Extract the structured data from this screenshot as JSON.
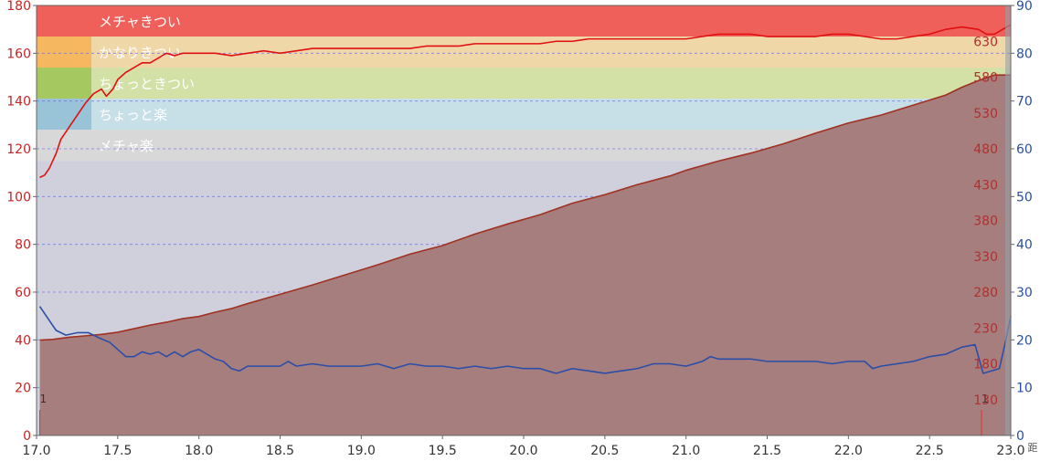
{
  "chart_data": {
    "type": "line",
    "xlim": [
      17.0,
      23.0
    ],
    "x_ticks": [
      "17.0",
      "17.5",
      "18.0",
      "18.5",
      "19.0",
      "19.5",
      "20.0",
      "20.5",
      "21.0",
      "21.5",
      "22.0",
      "22.5",
      "23.0"
    ],
    "left_axis": {
      "ylim": [
        0,
        180
      ],
      "ticks": [
        "0",
        "20",
        "40",
        "60",
        "80",
        "100",
        "120",
        "140",
        "160",
        "180"
      ]
    },
    "right_axis_red": {
      "ylim": [
        80,
        680
      ],
      "ticks": [
        "130",
        "180",
        "230",
        "280",
        "330",
        "380",
        "430",
        "480",
        "530",
        "580",
        "630"
      ]
    },
    "right_axis_blue": {
      "ylim": [
        0,
        90
      ],
      "ticks": [
        "0",
        "10",
        "20",
        "30",
        "40",
        "50",
        "60",
        "70",
        "80",
        "90"
      ]
    },
    "right_axis_unit": "距",
    "zones": [
      {
        "label": "メチャきつい",
        "from": 167,
        "to": 180,
        "color": "#f0605a",
        "band_color": "#f0605a"
      },
      {
        "label": "かなりきつい",
        "from": 154,
        "to": 167,
        "color": "#f5b860",
        "band_color": "#efd7a8"
      },
      {
        "label": "ちょっときつい",
        "from": 141,
        "to": 154,
        "color": "#a5c860",
        "band_color": "#d3e0a6"
      },
      {
        "label": "ちょっと楽",
        "from": 128,
        "to": 141,
        "color": "#99c3d7",
        "band_color": "#c7e0e8"
      },
      {
        "label": "メチャ楽",
        "from": 115,
        "to": 128,
        "color": "#d8d8d8",
        "band_color": "#d8d8d8"
      }
    ],
    "below_zone_color": "#cfd0dc",
    "series": [
      {
        "axis": "left",
        "color": "#e01010",
        "points": [
          [
            17.02,
            108
          ],
          [
            17.05,
            109
          ],
          [
            17.08,
            112
          ],
          [
            17.12,
            118
          ],
          [
            17.15,
            124
          ],
          [
            17.2,
            129
          ],
          [
            17.25,
            134
          ],
          [
            17.3,
            139
          ],
          [
            17.35,
            143
          ],
          [
            17.4,
            145
          ],
          [
            17.43,
            142
          ],
          [
            17.47,
            145
          ],
          [
            17.5,
            149
          ],
          [
            17.55,
            152
          ],
          [
            17.6,
            154
          ],
          [
            17.65,
            156
          ],
          [
            17.7,
            156
          ],
          [
            17.75,
            158
          ],
          [
            17.8,
            160
          ],
          [
            17.85,
            159
          ],
          [
            17.9,
            160
          ],
          [
            18.0,
            160
          ],
          [
            18.1,
            160
          ],
          [
            18.2,
            159
          ],
          [
            18.3,
            160
          ],
          [
            18.4,
            161
          ],
          [
            18.5,
            160
          ],
          [
            18.6,
            161
          ],
          [
            18.7,
            162
          ],
          [
            18.8,
            162
          ],
          [
            18.9,
            162
          ],
          [
            19.0,
            162
          ],
          [
            19.1,
            162
          ],
          [
            19.2,
            162
          ],
          [
            19.3,
            162
          ],
          [
            19.4,
            163
          ],
          [
            19.5,
            163
          ],
          [
            19.6,
            163
          ],
          [
            19.7,
            164
          ],
          [
            19.8,
            164
          ],
          [
            19.9,
            164
          ],
          [
            20.0,
            164
          ],
          [
            20.1,
            164
          ],
          [
            20.2,
            165
          ],
          [
            20.3,
            165
          ],
          [
            20.4,
            166
          ],
          [
            20.5,
            166
          ],
          [
            20.6,
            166
          ],
          [
            20.7,
            166
          ],
          [
            20.8,
            166
          ],
          [
            20.9,
            166
          ],
          [
            21.0,
            166
          ],
          [
            21.1,
            167
          ],
          [
            21.2,
            168
          ],
          [
            21.3,
            168
          ],
          [
            21.4,
            168
          ],
          [
            21.5,
            167
          ],
          [
            21.6,
            167
          ],
          [
            21.7,
            167
          ],
          [
            21.8,
            167
          ],
          [
            21.9,
            168
          ],
          [
            22.0,
            168
          ],
          [
            22.1,
            167
          ],
          [
            22.2,
            166
          ],
          [
            22.3,
            166
          ],
          [
            22.4,
            167
          ],
          [
            22.5,
            168
          ],
          [
            22.6,
            170
          ],
          [
            22.7,
            171
          ],
          [
            22.8,
            170
          ],
          [
            22.85,
            168
          ],
          [
            22.9,
            168
          ],
          [
            22.95,
            170
          ],
          [
            23.0,
            172
          ]
        ]
      },
      {
        "axis": "right_red",
        "color": "#a03020",
        "fill": "#a77e7e",
        "points": [
          [
            17.02,
            213
          ],
          [
            17.1,
            214
          ],
          [
            17.2,
            217
          ],
          [
            17.3,
            219
          ],
          [
            17.4,
            221
          ],
          [
            17.5,
            224
          ],
          [
            17.6,
            229
          ],
          [
            17.7,
            234
          ],
          [
            17.8,
            238
          ],
          [
            17.9,
            243
          ],
          [
            18.0,
            246
          ],
          [
            18.1,
            252
          ],
          [
            18.2,
            257
          ],
          [
            18.3,
            264
          ],
          [
            18.5,
            277
          ],
          [
            18.7,
            290
          ],
          [
            18.9,
            304
          ],
          [
            19.1,
            318
          ],
          [
            19.3,
            333
          ],
          [
            19.5,
            345
          ],
          [
            19.7,
            361
          ],
          [
            19.9,
            375
          ],
          [
            20.1,
            388
          ],
          [
            20.3,
            404
          ],
          [
            20.5,
            416
          ],
          [
            20.7,
            430
          ],
          [
            20.9,
            442
          ],
          [
            21.0,
            450
          ],
          [
            21.2,
            463
          ],
          [
            21.4,
            474
          ],
          [
            21.6,
            487
          ],
          [
            21.8,
            502
          ],
          [
            22.0,
            516
          ],
          [
            22.2,
            527
          ],
          [
            22.4,
            541
          ],
          [
            22.6,
            555
          ],
          [
            22.7,
            566
          ],
          [
            22.8,
            575
          ],
          [
            22.9,
            583
          ],
          [
            23.0,
            583
          ]
        ]
      },
      {
        "axis": "right_blue",
        "color": "#2a4ea8",
        "points": [
          [
            17.02,
            27
          ],
          [
            17.08,
            24
          ],
          [
            17.12,
            22
          ],
          [
            17.18,
            21
          ],
          [
            17.25,
            21.5
          ],
          [
            17.32,
            21.5
          ],
          [
            17.38,
            20.5
          ],
          [
            17.45,
            19.5
          ],
          [
            17.5,
            18
          ],
          [
            17.55,
            16.5
          ],
          [
            17.6,
            16.5
          ],
          [
            17.65,
            17.5
          ],
          [
            17.7,
            17
          ],
          [
            17.75,
            17.5
          ],
          [
            17.8,
            16.5
          ],
          [
            17.85,
            17.5
          ],
          [
            17.9,
            16.5
          ],
          [
            17.95,
            17.5
          ],
          [
            18.0,
            18
          ],
          [
            18.05,
            17
          ],
          [
            18.1,
            16
          ],
          [
            18.15,
            15.5
          ],
          [
            18.2,
            14
          ],
          [
            18.25,
            13.5
          ],
          [
            18.3,
            14.5
          ],
          [
            18.4,
            14.5
          ],
          [
            18.5,
            14.5
          ],
          [
            18.55,
            15.5
          ],
          [
            18.6,
            14.5
          ],
          [
            18.7,
            15
          ],
          [
            18.8,
            14.5
          ],
          [
            18.9,
            14.5
          ],
          [
            19.0,
            14.5
          ],
          [
            19.1,
            15
          ],
          [
            19.2,
            14
          ],
          [
            19.3,
            15
          ],
          [
            19.4,
            14.5
          ],
          [
            19.5,
            14.5
          ],
          [
            19.6,
            14
          ],
          [
            19.7,
            14.5
          ],
          [
            19.8,
            14
          ],
          [
            19.9,
            14.5
          ],
          [
            20.0,
            14
          ],
          [
            20.1,
            14
          ],
          [
            20.2,
            13
          ],
          [
            20.25,
            13.5
          ],
          [
            20.3,
            14
          ],
          [
            20.4,
            13.5
          ],
          [
            20.5,
            13
          ],
          [
            20.6,
            13.5
          ],
          [
            20.7,
            14
          ],
          [
            20.8,
            15
          ],
          [
            20.9,
            15
          ],
          [
            21.0,
            14.5
          ],
          [
            21.1,
            15.5
          ],
          [
            21.15,
            16.5
          ],
          [
            21.2,
            16
          ],
          [
            21.3,
            16
          ],
          [
            21.4,
            16
          ],
          [
            21.5,
            15.5
          ],
          [
            21.6,
            15.5
          ],
          [
            21.7,
            15.5
          ],
          [
            21.8,
            15.5
          ],
          [
            21.9,
            15
          ],
          [
            22.0,
            15.5
          ],
          [
            22.1,
            15.5
          ],
          [
            22.15,
            14
          ],
          [
            22.2,
            14.5
          ],
          [
            22.3,
            15
          ],
          [
            22.4,
            15.5
          ],
          [
            22.5,
            16.5
          ],
          [
            22.6,
            17
          ],
          [
            22.7,
            18.5
          ],
          [
            22.78,
            19
          ],
          [
            22.83,
            13
          ],
          [
            22.88,
            13.5
          ],
          [
            22.93,
            14
          ],
          [
            22.97,
            20
          ],
          [
            23.0,
            25
          ]
        ]
      }
    ],
    "laps": [
      {
        "x": 17.02,
        "label": "1"
      },
      {
        "x": 22.82,
        "label": "1"
      }
    ]
  }
}
